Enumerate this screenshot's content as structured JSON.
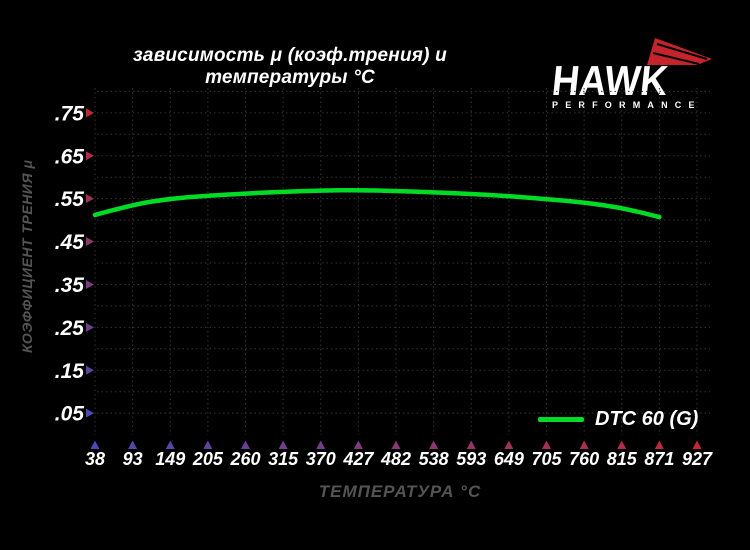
{
  "title": "зависимость μ (коэф.трения) и температуры °C",
  "logo": {
    "brand": "HAWK",
    "subbrand": "PERFORMANCE"
  },
  "colors": {
    "background": "#000000",
    "curve_green": "#00dc26",
    "axis_red": "#c22737",
    "axis_blue": "#4a4ab2",
    "grid_gray": "#343434",
    "label_gray": "#545454",
    "text_white": "#ffffff",
    "logo_red": "#c4252d"
  },
  "chart_data": {
    "type": "line",
    "title": "зависимость μ (коэф.трения) и температуры °C",
    "xlabel": "ТЕМПЕРАТУРА °C",
    "ylabel": "КОЭФФИЦИЕНТ ТРЕНИЯ μ",
    "x_tick_labels": [
      "38",
      "93",
      "149",
      "205",
      "260",
      "315",
      "370",
      "427",
      "482",
      "538",
      "593",
      "649",
      "705",
      "760",
      "815",
      "871",
      "927"
    ],
    "y_tick_labels": [
      ".05",
      ".15",
      ".25",
      ".35",
      ".45",
      ".55",
      ".65",
      ".75"
    ],
    "y_tick_values": [
      0.05,
      0.15,
      0.25,
      0.35,
      0.45,
      0.55,
      0.65,
      0.75
    ],
    "ylim": [
      0,
      0.8
    ],
    "grid": "dotted, horizontal every 0.05, vertical at every temperature tick",
    "legend": {
      "label": "DTC 60 (G)",
      "position": "bottom-right"
    },
    "series": [
      {
        "name": "DTC 60 (G)",
        "color": "#00dc26",
        "x": [
          38,
          93,
          149,
          205,
          260,
          315,
          370,
          427,
          482,
          538,
          593,
          649,
          705,
          760,
          815,
          871
        ],
        "values": [
          0.512,
          0.536,
          0.55,
          0.557,
          0.562,
          0.566,
          0.569,
          0.57,
          0.568,
          0.565,
          0.561,
          0.556,
          0.549,
          0.541,
          0.529,
          0.507
        ]
      }
    ]
  }
}
